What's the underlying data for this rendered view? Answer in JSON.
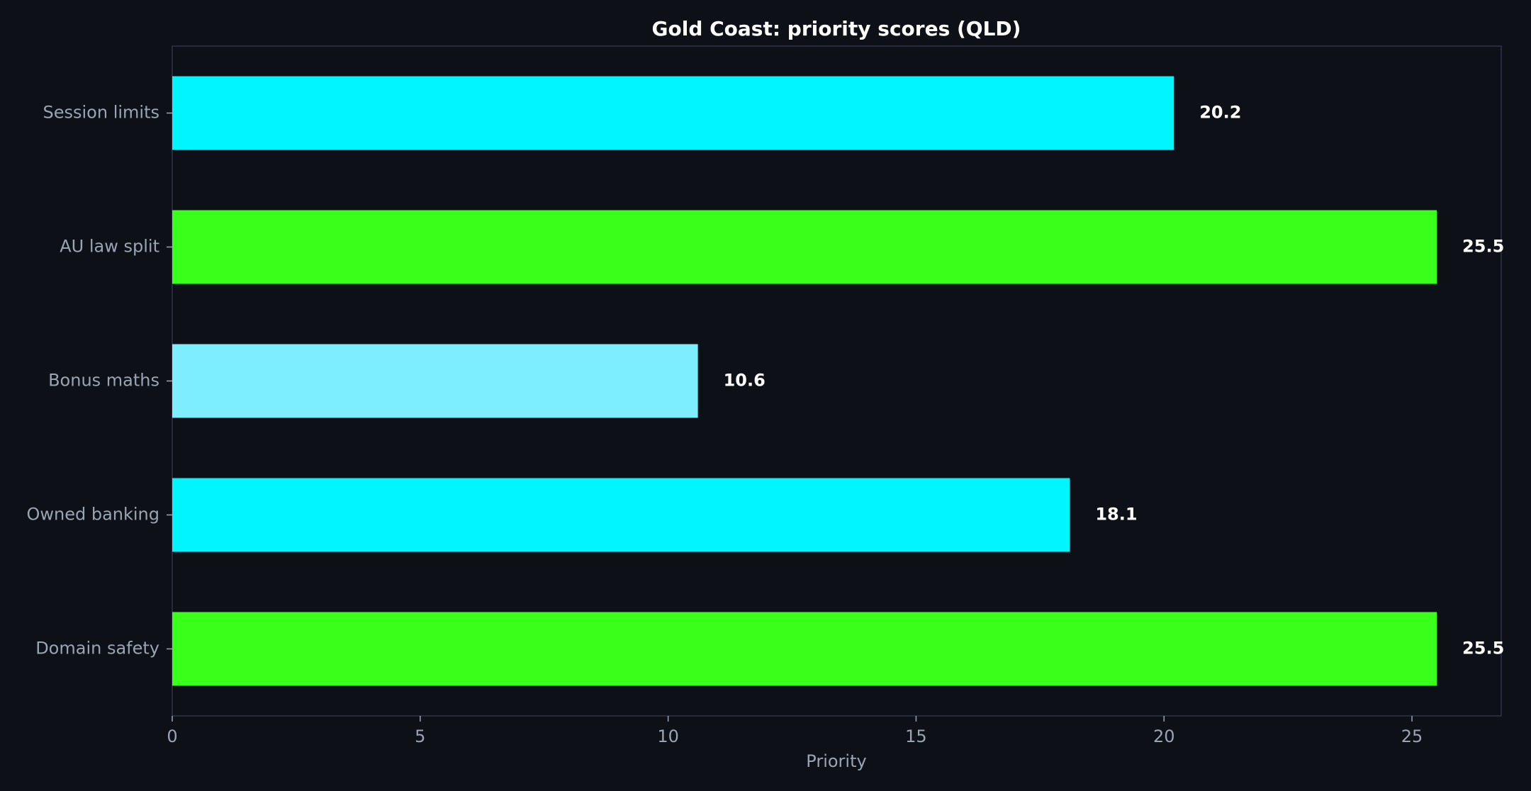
{
  "theme": {
    "background": "#0d1117",
    "frame": "#2f3347",
    "text": "#ffffff",
    "muted_text": "#9aa4b2"
  },
  "chart_data": {
    "type": "bar",
    "orientation": "horizontal",
    "title": "Gold Coast: priority scores (QLD)",
    "xlabel": "Priority",
    "ylabel": "",
    "categories": [
      "Session limits",
      "AU law split",
      "Bonus maths",
      "Owned banking",
      "Domain safety"
    ],
    "values": [
      20.2,
      25.5,
      10.6,
      18.1,
      25.5
    ],
    "value_labels": [
      "20.2",
      "25.5",
      "10.6",
      "18.1",
      "25.5"
    ],
    "bar_colors": [
      "#00f5ff",
      "#39ff1a",
      "#7deeff",
      "#00f5ff",
      "#39ff1a"
    ],
    "xlim": [
      0,
      26.8
    ],
    "xticks": [
      0,
      5,
      10,
      15,
      20,
      25
    ],
    "grid": false,
    "legend": "none"
  }
}
